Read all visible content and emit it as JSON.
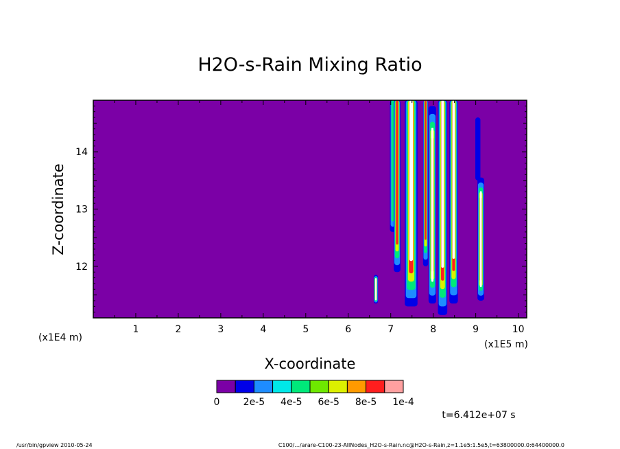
{
  "chart_data": {
    "type": "heatmap",
    "title": "H2O-s-Rain Mixing Ratio",
    "xlabel": "X-coordinate",
    "ylabel": "Z-coordinate",
    "x_unit": "(x1E5 m)",
    "y_unit": "(x1E4 m)",
    "xlim": [
      0,
      10.2
    ],
    "ylim": [
      11.1,
      14.9
    ],
    "x_ticks": [
      "1",
      "2",
      "3",
      "4",
      "5",
      "6",
      "7",
      "8",
      "9",
      "10"
    ],
    "y_ticks": [
      "12",
      "13",
      "14"
    ],
    "colorbar": {
      "levels": [
        0,
        1e-05,
        2e-05,
        3e-05,
        4e-05,
        5e-05,
        6e-05,
        7e-05,
        8e-05,
        9e-05,
        0.0001
      ],
      "colors": [
        "#7b00a6",
        "#0000e8",
        "#1e8cff",
        "#00e8e8",
        "#00e87a",
        "#6ee800",
        "#dcf000",
        "#ff9a00",
        "#ff1e1e",
        "#ffa0a0"
      ],
      "labels": [
        "0",
        "2e-5",
        "4e-5",
        "6e-5",
        "8e-5",
        "1e-4"
      ]
    },
    "background_color": "#7b00a6",
    "rain_shafts": [
      {
        "x": 6.65,
        "z_bottom": 11.35,
        "z_top": 11.85,
        "width": 0.1,
        "peak": "#ffffff"
      },
      {
        "x": 7.05,
        "z_bottom": 12.6,
        "z_top": 14.9,
        "width": 0.14,
        "peak": "#00e87a"
      },
      {
        "x": 7.15,
        "z_bottom": 11.9,
        "z_top": 14.9,
        "width": 0.16,
        "peak": "#6ee800"
      },
      {
        "x": 7.48,
        "z_bottom": 11.3,
        "z_top": 14.9,
        "width": 0.3,
        "peak": "#ffffff"
      },
      {
        "x": 7.82,
        "z_bottom": 12.0,
        "z_top": 14.9,
        "width": 0.12,
        "peak": "#00e8e8"
      },
      {
        "x": 7.98,
        "z_bottom": 11.35,
        "z_top": 14.8,
        "width": 0.18,
        "peak": "#ffffff"
      },
      {
        "x": 8.22,
        "z_bottom": 11.15,
        "z_top": 14.9,
        "width": 0.22,
        "peak": "#ffffff"
      },
      {
        "x": 8.48,
        "z_bottom": 11.35,
        "z_top": 14.9,
        "width": 0.2,
        "peak": "#ffffff"
      },
      {
        "x": 9.12,
        "z_bottom": 11.4,
        "z_top": 13.55,
        "width": 0.16,
        "peak": "#ffffff"
      },
      {
        "x": 9.05,
        "z_bottom": 13.5,
        "z_top": 14.6,
        "width": 0.12,
        "peak": "#0000e8"
      }
    ],
    "annotations": {
      "time": "t=6.412e+07 s",
      "footer_left": "/usr/bin/gpview  2010-05-24",
      "footer_right": "C100/.../arare-C100-23-AllNodes_H2O-s-Rain.nc@H2O-s-Rain,z=1.1e5:1.5e5,t=63800000.0:64400000.0"
    }
  }
}
